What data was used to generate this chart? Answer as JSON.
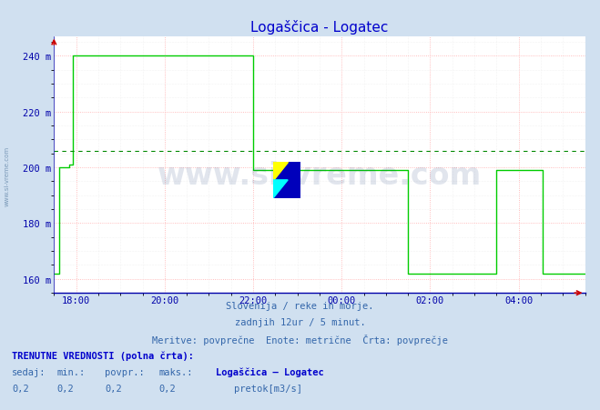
{
  "title": "Logaščica - Logatec",
  "title_color": "#0000cc",
  "bg_color": "#d0e0f0",
  "plot_bg_color": "#ffffff",
  "line_color": "#00cc00",
  "avg_line_color": "#008800",
  "avg_line_dash": [
    4,
    4
  ],
  "grid_color_major": "#ffaaaa",
  "grid_color_minor": "#e8e8e8",
  "ylim": [
    155,
    247
  ],
  "ytick_vals": [
    160,
    180,
    200,
    220,
    240
  ],
  "ytick_labels": [
    "160 m",
    "180 m",
    "200 m",
    "220 m",
    "240 m"
  ],
  "xlim": [
    0,
    288
  ],
  "xtick_pos": [
    12,
    60,
    108,
    156,
    204,
    252
  ],
  "xtick_labels": [
    "18:00",
    "20:00",
    "22:00",
    "00:00",
    "02:00",
    "04:00"
  ],
  "tick_color": "#0000aa",
  "footer_line1": "Slovenija / reke in morje.",
  "footer_line2": "zadnjih 12ur / 5 minut.",
  "footer_line3": "Meritve: povprečne  Enote: metrične  Črta: povprečje",
  "footer_color": "#3366aa",
  "info_label": "TRENUTNE VREDNOSTI (polna črta):",
  "col_headers": [
    "sedaj:",
    "min.:",
    "povpr.:",
    "maks.:"
  ],
  "col_values": [
    "0,2",
    "0,2",
    "0,2",
    "0,2"
  ],
  "legend_station": "Logaščica – Logatec",
  "legend_unit": "pretok[m3/s]",
  "legend_color": "#00cc00",
  "avg_value": 206,
  "watermark": "www.si-vreme.com",
  "watermark_color": "#1a3a7a",
  "watermark_alpha": 0.13,
  "arrow_color": "#cc0000",
  "data_y_segments": [
    {
      "x_start": 0,
      "x_end": 2,
      "y": 162
    },
    {
      "x_start": 2,
      "x_end": 3,
      "y": 162
    },
    {
      "x_start": 3,
      "x_end": 4,
      "y": 200
    },
    {
      "x_start": 4,
      "x_end": 8,
      "y": 200
    },
    {
      "x_start": 8,
      "x_end": 10,
      "y": 201
    },
    {
      "x_start": 10,
      "x_end": 13,
      "y": 240
    },
    {
      "x_start": 13,
      "x_end": 108,
      "y": 240
    },
    {
      "x_start": 108,
      "x_end": 110,
      "y": 199
    },
    {
      "x_start": 110,
      "x_end": 192,
      "y": 199
    },
    {
      "x_start": 192,
      "x_end": 193,
      "y": 162
    },
    {
      "x_start": 193,
      "x_end": 240,
      "y": 162
    },
    {
      "x_start": 240,
      "x_end": 241,
      "y": 199
    },
    {
      "x_start": 241,
      "x_end": 265,
      "y": 199
    },
    {
      "x_start": 265,
      "x_end": 266,
      "y": 162
    },
    {
      "x_start": 266,
      "x_end": 288,
      "y": 162
    }
  ]
}
